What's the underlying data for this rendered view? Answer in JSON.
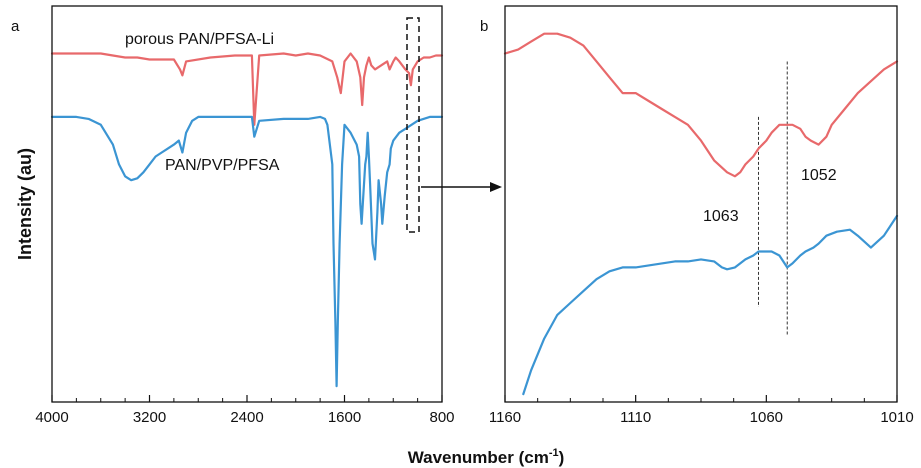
{
  "figure": {
    "ylabel": "Intensity (au)",
    "xlabel": "Wavenumber (cm",
    "xlabel_sup": "-1",
    "xlabel_close": ")"
  },
  "colors": {
    "red": "#e8696b",
    "blue": "#3b95d3",
    "axis": "#111111"
  },
  "chart_data": [
    {
      "panel": "a",
      "type": "line",
      "xlim": [
        4000,
        800
      ],
      "x_reversed": true,
      "xticks": [
        4000,
        3200,
        2400,
        1600,
        800
      ],
      "xtick_labels": [
        "4000",
        "3200",
        "2400",
        "1600",
        "800"
      ],
      "xlabel": "Wavenumber (cm-1)",
      "ylabel": "Intensity (au)",
      "ylim": [
        0,
        100
      ],
      "grid": false,
      "series": [
        {
          "name": "porous PAN/PFSA-Li",
          "color": "#e8696b",
          "x": [
            4000,
            3800,
            3600,
            3500,
            3400,
            3300,
            3200,
            3100,
            3000,
            2950,
            2930,
            2900,
            2700,
            2500,
            2360,
            2340,
            2300,
            2100,
            2000,
            1900,
            1800,
            1700,
            1660,
            1630,
            1600,
            1550,
            1500,
            1470,
            1455,
            1440,
            1420,
            1400,
            1380,
            1350,
            1300,
            1250,
            1230,
            1200,
            1180,
            1150,
            1100,
            1070,
            1055,
            1040,
            1000,
            950,
            900,
            850,
            800
          ],
          "y": [
            88,
            88,
            88,
            87.5,
            87,
            87,
            86.5,
            86.5,
            86.5,
            84,
            82.5,
            86,
            87,
            87.5,
            87.5,
            70,
            87.5,
            88,
            87.5,
            88,
            87.5,
            86,
            82,
            78,
            86,
            88,
            86,
            82,
            75,
            82,
            85,
            87,
            85,
            84,
            85,
            86,
            84,
            86,
            87,
            86,
            84,
            83,
            80,
            84,
            86,
            87,
            87,
            87.5,
            87.5
          ]
        },
        {
          "name": "PAN/PVP/PFSA",
          "color": "#3b95d3",
          "x": [
            4000,
            3900,
            3800,
            3700,
            3600,
            3500,
            3450,
            3400,
            3350,
            3300,
            3250,
            3200,
            3150,
            3100,
            3050,
            3000,
            2960,
            2930,
            2900,
            2850,
            2800,
            2700,
            2500,
            2360,
            2340,
            2300,
            2100,
            1900,
            1800,
            1760,
            1740,
            1700,
            1690,
            1675,
            1665,
            1655,
            1640,
            1620,
            1600,
            1550,
            1500,
            1480,
            1470,
            1460,
            1450,
            1430,
            1420,
            1410,
            1400,
            1390,
            1370,
            1350,
            1330,
            1320,
            1300,
            1290,
            1270,
            1250,
            1230,
            1220,
            1200,
            1150,
            1100,
            1050,
            1000,
            900,
            800
          ],
          "y": [
            72,
            72,
            72,
            71.5,
            70,
            65,
            60,
            57,
            56,
            56.5,
            58,
            60,
            62,
            63,
            64,
            65,
            66,
            63,
            68,
            71,
            72,
            72,
            72,
            72,
            67,
            71,
            71.5,
            71.5,
            72,
            71.5,
            70,
            60,
            40,
            20,
            4,
            20,
            40,
            60,
            70,
            68,
            65,
            62,
            50,
            45,
            50,
            60,
            62,
            68,
            62,
            55,
            40,
            36,
            48,
            56,
            50,
            45,
            52,
            58,
            60,
            64,
            66,
            68,
            69,
            70,
            71,
            72,
            72
          ]
        }
      ],
      "annotations": [
        {
          "text": "porous PAN/PFSA-Li",
          "x": 2650,
          "y": 94,
          "series": 0
        },
        {
          "text": "PAN/PVP/PFSA",
          "x": 2600,
          "y": 61,
          "series": 1
        }
      ]
    },
    {
      "panel": "b",
      "type": "line",
      "xlim": [
        1160,
        1010
      ],
      "x_reversed": true,
      "xticks": [
        1160,
        1110,
        1060,
        1010
      ],
      "xtick_labels": [
        "1160",
        "1110",
        "1060",
        "1010"
      ],
      "ylim": [
        0,
        100
      ],
      "grid": false,
      "series": [
        {
          "name": "porous PAN/PFSA-Li",
          "color": "#e8696b",
          "x": [
            1160,
            1155,
            1150,
            1145,
            1140,
            1135,
            1130,
            1125,
            1120,
            1115,
            1110,
            1105,
            1100,
            1095,
            1090,
            1085,
            1080,
            1075,
            1072,
            1070,
            1068,
            1065,
            1063,
            1060,
            1058,
            1055,
            1052,
            1050,
            1047,
            1045,
            1043,
            1040,
            1037,
            1035,
            1030,
            1025,
            1020,
            1015,
            1010
          ],
          "y": [
            88,
            89,
            91,
            93,
            93,
            92,
            90,
            86,
            82,
            78,
            78,
            76,
            74,
            72,
            70,
            66,
            61,
            58,
            57,
            58,
            60,
            62,
            64,
            66,
            68,
            70,
            70,
            70,
            69,
            67,
            66,
            65,
            67,
            70,
            74,
            78,
            81,
            84,
            86
          ]
        },
        {
          "name": "PAN/PVP/PFSA",
          "color": "#3b95d3",
          "x": [
            1153,
            1150,
            1145,
            1140,
            1135,
            1130,
            1125,
            1120,
            1115,
            1110,
            1105,
            1100,
            1095,
            1090,
            1085,
            1080,
            1077,
            1075,
            1072,
            1068,
            1065,
            1063,
            1060,
            1058,
            1055,
            1052,
            1050,
            1047,
            1045,
            1042,
            1040,
            1037,
            1033,
            1028,
            1025,
            1020,
            1015,
            1010
          ],
          "y": [
            2,
            8,
            16,
            22,
            25,
            28,
            31,
            33,
            34,
            34,
            34.5,
            35,
            35.5,
            35.5,
            36,
            35.5,
            34,
            33.5,
            34,
            36,
            37,
            38,
            38,
            38,
            37,
            34,
            35,
            37,
            38,
            39,
            40,
            42,
            43,
            43.5,
            42,
            39,
            42,
            47
          ]
        }
      ],
      "reference_lines": [
        {
          "x": 1063,
          "label": "1063",
          "y_top": 72,
          "y_bottom": 24
        },
        {
          "x": 1052,
          "label": "1052",
          "y_top": 86,
          "y_bottom": 17
        }
      ]
    }
  ]
}
